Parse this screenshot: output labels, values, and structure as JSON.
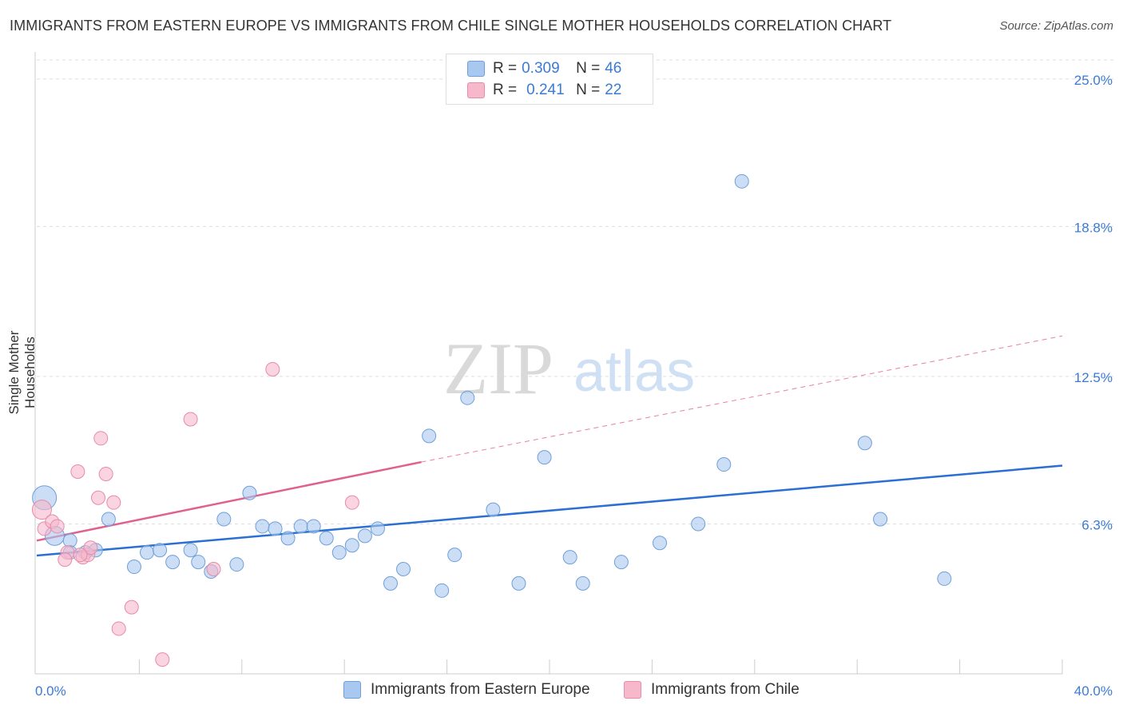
{
  "title": "IMMIGRANTS FROM EASTERN EUROPE VS IMMIGRANTS FROM CHILE SINGLE MOTHER HOUSEHOLDS CORRELATION CHART",
  "source": "Source: ZipAtlas.com",
  "watermark": {
    "zip": "ZIP",
    "atlas": "atlas"
  },
  "legend": {
    "rows": [
      {
        "r_label": "R =",
        "r_value": "0.309",
        "n_label": "N =",
        "n_value": "46"
      },
      {
        "r_label": "R =",
        "r_value": "0.241",
        "n_label": "N =",
        "n_value": "22"
      }
    ]
  },
  "colors": {
    "blue_fill": "#a9c8f0",
    "blue_stroke": "#6f9fd8",
    "blue_line": "#2a6fd1",
    "pink_fill": "#f7b8cb",
    "pink_stroke": "#e98aa8",
    "pink_line": "#e0608f",
    "tick_label": "#3a7bd5",
    "grid": "#dddddd"
  },
  "chart_data": {
    "type": "scatter",
    "title": "IMMIGRANTS FROM EASTERN EUROPE VS IMMIGRANTS FROM CHILE SINGLE MOTHER HOUSEHOLDS CORRELATION CHART",
    "xlabel": "",
    "ylabel": "Single Mother Households",
    "xlim": [
      0,
      40
    ],
    "ylim": [
      0,
      25.8
    ],
    "x_tick_labels": [
      "0.0%",
      "40.0%"
    ],
    "y_ticks": [
      6.3,
      12.5,
      18.8,
      25.0
    ],
    "y_tick_labels": [
      "6.3%",
      "12.5%",
      "18.8%",
      "25.0%"
    ],
    "grid": true,
    "series": [
      {
        "name": "Immigrants from Eastern Europe",
        "color": "#a9c8f0",
        "points": [
          [
            0.3,
            7.4
          ],
          [
            0.7,
            5.8
          ],
          [
            1.3,
            5.6
          ],
          [
            1.9,
            5.1
          ],
          [
            2.3,
            5.2
          ],
          [
            2.8,
            6.5
          ],
          [
            3.8,
            4.5
          ],
          [
            4.3,
            5.1
          ],
          [
            4.8,
            5.2
          ],
          [
            5.3,
            4.7
          ],
          [
            6.0,
            5.2
          ],
          [
            6.3,
            4.7
          ],
          [
            6.8,
            4.3
          ],
          [
            7.3,
            6.5
          ],
          [
            7.8,
            4.6
          ],
          [
            8.3,
            7.6
          ],
          [
            8.8,
            6.2
          ],
          [
            9.3,
            6.1
          ],
          [
            9.8,
            5.7
          ],
          [
            10.3,
            6.2
          ],
          [
            10.8,
            6.2
          ],
          [
            11.3,
            5.7
          ],
          [
            11.8,
            5.1
          ],
          [
            12.3,
            5.4
          ],
          [
            12.8,
            5.8
          ],
          [
            13.3,
            6.1
          ],
          [
            13.8,
            3.8
          ],
          [
            14.3,
            4.4
          ],
          [
            15.3,
            10.0
          ],
          [
            15.8,
            3.5
          ],
          [
            16.3,
            5.0
          ],
          [
            16.8,
            11.6
          ],
          [
            17.8,
            6.9
          ],
          [
            18.8,
            3.8
          ],
          [
            19.8,
            9.1
          ],
          [
            20.8,
            4.9
          ],
          [
            21.3,
            3.8
          ],
          [
            22.8,
            4.7
          ],
          [
            24.3,
            5.5
          ],
          [
            25.8,
            6.3
          ],
          [
            26.8,
            8.8
          ],
          [
            27.5,
            20.7
          ],
          [
            32.3,
            9.7
          ],
          [
            32.9,
            6.5
          ],
          [
            35.4,
            4.0
          ],
          [
            1.3,
            5.1
          ]
        ]
      },
      {
        "name": "Immigrants from Chile",
        "color": "#f7b8cb",
        "points": [
          [
            0.2,
            6.9
          ],
          [
            0.3,
            6.1
          ],
          [
            0.6,
            6.4
          ],
          [
            0.8,
            6.2
          ],
          [
            1.2,
            5.1
          ],
          [
            1.1,
            4.8
          ],
          [
            1.6,
            8.5
          ],
          [
            1.8,
            4.9
          ],
          [
            2.0,
            5.0
          ],
          [
            2.1,
            5.3
          ],
          [
            2.4,
            7.4
          ],
          [
            2.5,
            9.9
          ],
          [
            2.7,
            8.4
          ],
          [
            3.0,
            7.2
          ],
          [
            3.2,
            1.9
          ],
          [
            3.7,
            2.8
          ],
          [
            4.9,
            0.6
          ],
          [
            6.0,
            10.7
          ],
          [
            6.9,
            4.4
          ],
          [
            9.2,
            12.8
          ],
          [
            12.3,
            7.2
          ],
          [
            1.7,
            5.0
          ]
        ]
      }
    ],
    "trend_lines": [
      {
        "series": "Immigrants from Eastern Europe",
        "x": [
          0,
          40
        ],
        "y": [
          4.97,
          8.75
        ],
        "style": "solid"
      },
      {
        "series": "Immigrants from Chile",
        "x": [
          0,
          15
        ],
        "y": [
          5.6,
          8.9
        ],
        "style": "solid"
      },
      {
        "series": "Immigrants from Chile",
        "x": [
          15,
          40
        ],
        "y": [
          8.9,
          14.2
        ],
        "style": "dashed"
      }
    ]
  }
}
